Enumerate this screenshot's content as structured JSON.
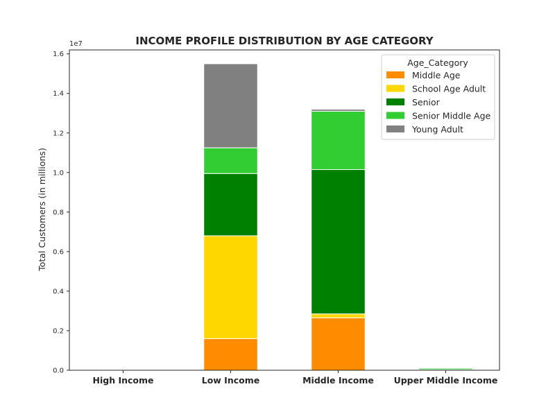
{
  "chart_data": {
    "type": "bar",
    "stacked": true,
    "title": "INCOME PROFILE DISTRIBUTION BY AGE CATEGORY",
    "xlabel": "",
    "ylabel": "Total Customers (in millions)",
    "y_offset_text": "1e7",
    "ylim": [
      0,
      16200000
    ],
    "yticks": [
      0,
      2000000,
      4000000,
      6000000,
      8000000,
      10000000,
      12000000,
      14000000,
      16000000
    ],
    "ytick_labels": [
      "0.0",
      "0.2",
      "0.4",
      "0.6",
      "0.8",
      "1.0",
      "1.2",
      "1.4",
      "1.6"
    ],
    "categories": [
      "High Income",
      "Low Income",
      "Middle Income",
      "Upper Middle Income"
    ],
    "series": [
      {
        "name": "Middle Age",
        "color": "#FF8C00",
        "values": [
          0,
          1600000,
          2650000,
          0
        ]
      },
      {
        "name": "School Age Adult",
        "color": "#FFD700",
        "values": [
          0,
          5200000,
          200000,
          0
        ]
      },
      {
        "name": "Senior",
        "color": "#008000",
        "values": [
          0,
          3150000,
          7300000,
          30000
        ]
      },
      {
        "name": "Senior Middle Age",
        "color": "#32CD32",
        "values": [
          0,
          1300000,
          2950000,
          70000
        ]
      },
      {
        "name": "Young Adult",
        "color": "#808080",
        "values": [
          0,
          4250000,
          100000,
          0
        ]
      }
    ],
    "legend": {
      "title": "Age_Category",
      "placement": "top-right"
    },
    "grid": false
  }
}
